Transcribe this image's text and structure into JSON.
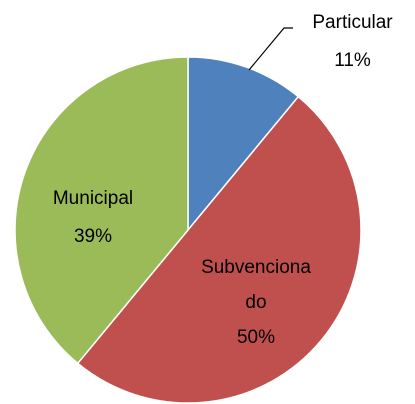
{
  "chart_data": {
    "type": "pie",
    "categories": [
      "Particular",
      "Subvencionado",
      "Municipal"
    ],
    "values": [
      11,
      50,
      39
    ],
    "value_labels": [
      "11%",
      "50%",
      "39%"
    ],
    "colors": [
      "#4f81bd",
      "#c0504d",
      "#9bbb59"
    ]
  }
}
